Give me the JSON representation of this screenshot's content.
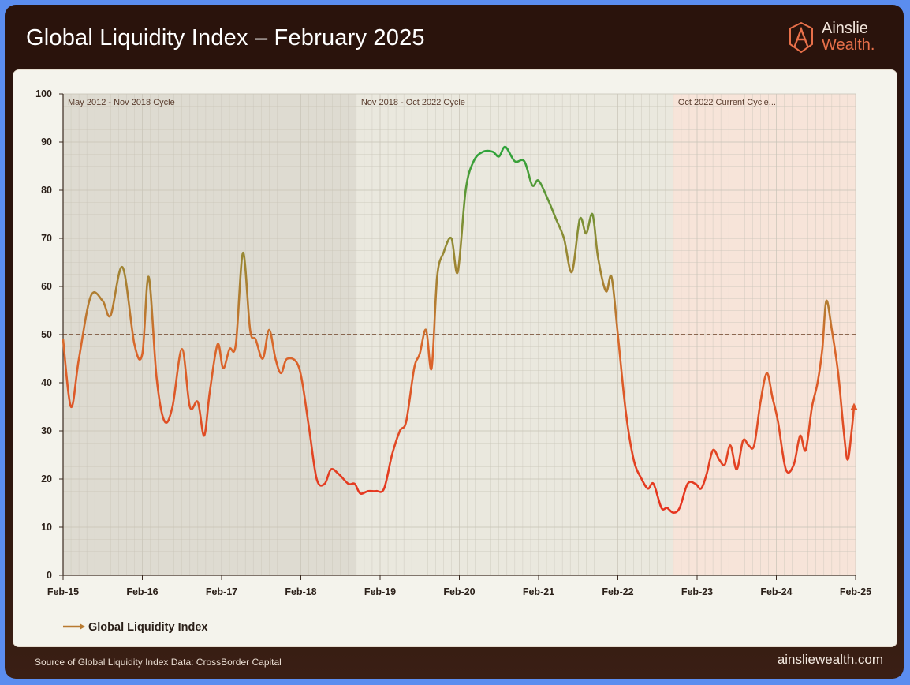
{
  "header": {
    "title": "Global Liquidity Index – February 2025"
  },
  "logo": {
    "line1": "Ainslie",
    "line2": "Wealth.",
    "icon": "ainslie-a-icon"
  },
  "footer": {
    "source": "Source of Global Liquidity Index Data: CrossBorder Capital",
    "url": "ainsliewealth.com"
  },
  "colors": {
    "low": "#e6341f",
    "mid": "#b87a30",
    "high": "#2fa33a",
    "header_bg": "#2a130c",
    "panel_bg": "#f4f3ec",
    "frame": "#5b8def"
  },
  "chart_data": {
    "type": "line",
    "title": "Global Liquidity Index – February 2025",
    "xlabel": "",
    "ylabel": "",
    "xlim": [
      2015.0,
      2025.0
    ],
    "ylim": [
      0,
      100
    ],
    "y_ticks": [
      0,
      10,
      20,
      30,
      40,
      50,
      60,
      70,
      80,
      90,
      100
    ],
    "x_ticks": [
      {
        "label": "Feb-15",
        "x": 2015.0
      },
      {
        "label": "Feb-16",
        "x": 2016.0
      },
      {
        "label": "Feb-17",
        "x": 2017.0
      },
      {
        "label": "Feb-18",
        "x": 2018.0
      },
      {
        "label": "Feb-19",
        "x": 2019.0
      },
      {
        "label": "Feb-20",
        "x": 2020.0
      },
      {
        "label": "Feb-21",
        "x": 2021.0
      },
      {
        "label": "Feb-22",
        "x": 2022.0
      },
      {
        "label": "Feb-23",
        "x": 2023.0
      },
      {
        "label": "Feb-24",
        "x": 2024.0
      },
      {
        "label": "Feb-25",
        "x": 2025.0
      }
    ],
    "reference_line": 50,
    "grid": true,
    "legend": {
      "position": "bottom-left",
      "entries": [
        "Global Liquidity Index"
      ]
    },
    "cycles": [
      {
        "label": "May 2012 - Nov 2018 Cycle",
        "start": 2015.0,
        "end": 2018.7,
        "color": "#d9d6cd"
      },
      {
        "label": "Nov 2018 - Oct 2022 Cycle",
        "start": 2018.7,
        "end": 2022.7,
        "color": "#e7e5dc"
      },
      {
        "label": "Oct 2022 Current Cycle...",
        "start": 2022.7,
        "end": 2025.0,
        "color": "#f7e1d6"
      }
    ],
    "series": [
      {
        "name": "Global Liquidity Index",
        "points": [
          [
            2015.0,
            49
          ],
          [
            2015.1,
            35
          ],
          [
            2015.2,
            45
          ],
          [
            2015.35,
            58
          ],
          [
            2015.5,
            57
          ],
          [
            2015.6,
            54
          ],
          [
            2015.75,
            64
          ],
          [
            2015.9,
            48
          ],
          [
            2016.0,
            46
          ],
          [
            2016.08,
            62
          ],
          [
            2016.18,
            41
          ],
          [
            2016.28,
            32
          ],
          [
            2016.38,
            35
          ],
          [
            2016.5,
            47
          ],
          [
            2016.6,
            35
          ],
          [
            2016.7,
            36
          ],
          [
            2016.78,
            29
          ],
          [
            2016.85,
            38
          ],
          [
            2016.95,
            48
          ],
          [
            2017.02,
            43
          ],
          [
            2017.1,
            47
          ],
          [
            2017.18,
            48
          ],
          [
            2017.27,
            67
          ],
          [
            2017.36,
            51
          ],
          [
            2017.43,
            49
          ],
          [
            2017.52,
            45
          ],
          [
            2017.6,
            51
          ],
          [
            2017.68,
            45
          ],
          [
            2017.75,
            42
          ],
          [
            2017.83,
            45
          ],
          [
            2017.98,
            43
          ],
          [
            2018.1,
            31
          ],
          [
            2018.2,
            20
          ],
          [
            2018.3,
            19
          ],
          [
            2018.38,
            22
          ],
          [
            2018.48,
            21
          ],
          [
            2018.6,
            19
          ],
          [
            2018.68,
            19
          ],
          [
            2018.75,
            17
          ],
          [
            2018.85,
            17.5
          ],
          [
            2018.95,
            17.5
          ],
          [
            2019.05,
            18
          ],
          [
            2019.15,
            25
          ],
          [
            2019.25,
            30
          ],
          [
            2019.33,
            32
          ],
          [
            2019.43,
            43
          ],
          [
            2019.5,
            46
          ],
          [
            2019.58,
            51
          ],
          [
            2019.65,
            43
          ],
          [
            2019.72,
            62
          ],
          [
            2019.8,
            67
          ],
          [
            2019.9,
            70
          ],
          [
            2019.98,
            63
          ],
          [
            2020.08,
            80
          ],
          [
            2020.18,
            86
          ],
          [
            2020.3,
            88
          ],
          [
            2020.42,
            88
          ],
          [
            2020.5,
            87
          ],
          [
            2020.58,
            89
          ],
          [
            2020.7,
            86
          ],
          [
            2020.82,
            86
          ],
          [
            2020.92,
            81
          ],
          [
            2021.0,
            82
          ],
          [
            2021.12,
            78
          ],
          [
            2021.22,
            74
          ],
          [
            2021.32,
            70
          ],
          [
            2021.42,
            63
          ],
          [
            2021.52,
            74
          ],
          [
            2021.6,
            71
          ],
          [
            2021.68,
            75
          ],
          [
            2021.75,
            66
          ],
          [
            2021.85,
            59
          ],
          [
            2021.92,
            62
          ],
          [
            2022.0,
            50
          ],
          [
            2022.1,
            34
          ],
          [
            2022.2,
            24
          ],
          [
            2022.3,
            20
          ],
          [
            2022.38,
            18
          ],
          [
            2022.45,
            19
          ],
          [
            2022.55,
            14
          ],
          [
            2022.62,
            14
          ],
          [
            2022.7,
            13
          ],
          [
            2022.78,
            14
          ],
          [
            2022.88,
            19
          ],
          [
            2022.98,
            19
          ],
          [
            2023.05,
            18
          ],
          [
            2023.12,
            21
          ],
          [
            2023.2,
            26
          ],
          [
            2023.28,
            24
          ],
          [
            2023.35,
            23
          ],
          [
            2023.42,
            27
          ],
          [
            2023.5,
            22
          ],
          [
            2023.58,
            28
          ],
          [
            2023.65,
            27
          ],
          [
            2023.72,
            27
          ],
          [
            2023.8,
            36
          ],
          [
            2023.88,
            42
          ],
          [
            2023.95,
            37
          ],
          [
            2024.02,
            32
          ],
          [
            2024.12,
            22
          ],
          [
            2024.22,
            23
          ],
          [
            2024.3,
            29
          ],
          [
            2024.37,
            26
          ],
          [
            2024.45,
            35
          ],
          [
            2024.52,
            40
          ],
          [
            2024.58,
            47
          ],
          [
            2024.63,
            57
          ],
          [
            2024.7,
            51
          ],
          [
            2024.78,
            42
          ],
          [
            2024.85,
            30
          ],
          [
            2024.9,
            24
          ],
          [
            2024.95,
            30
          ],
          [
            2024.98,
            35
          ]
        ]
      }
    ]
  }
}
